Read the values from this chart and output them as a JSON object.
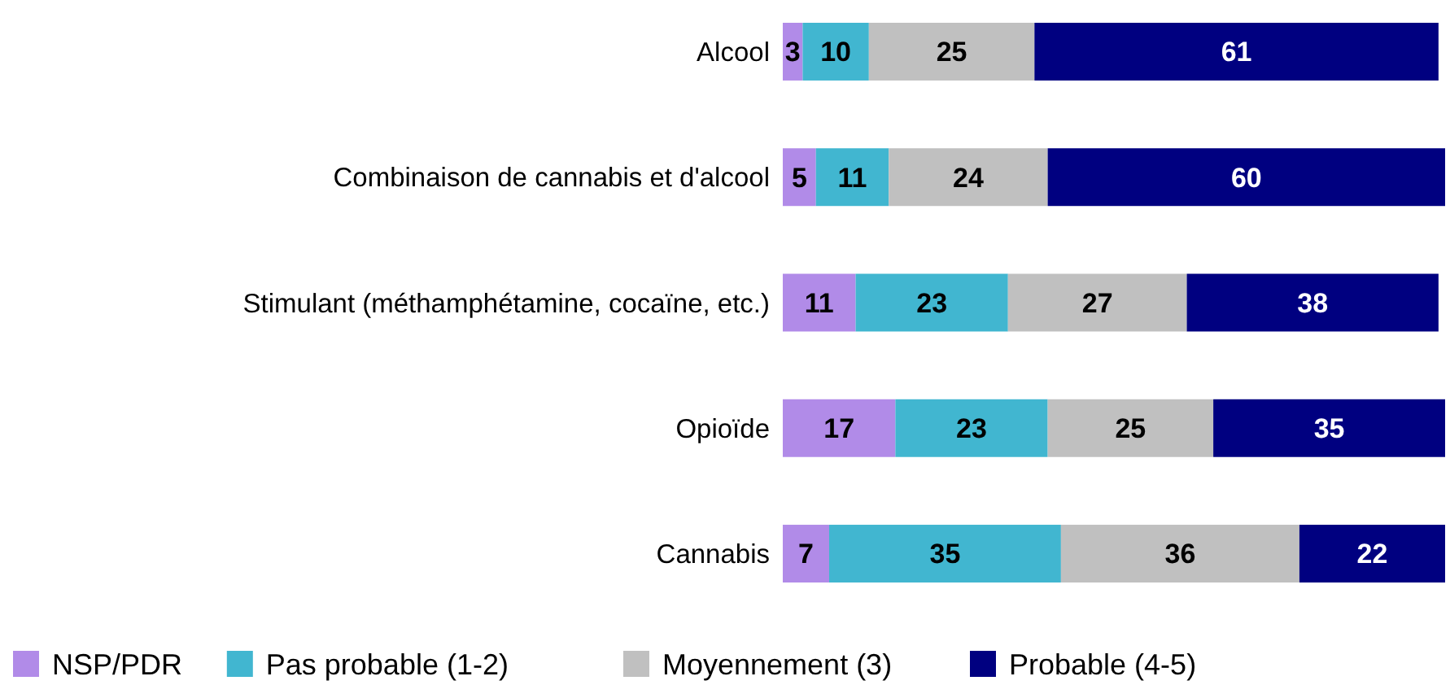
{
  "chart_data": {
    "type": "bar",
    "orientation": "horizontal",
    "stacked": true,
    "data_labels": true,
    "legend": "bottom",
    "tick_labels": "y",
    "categories": [
      "Alcool",
      "Combinaison de cannabis et d'alcool",
      "Stimulant (méthamphétamine, cocaïne, etc.)",
      "Opioïde",
      "Cannabis"
    ],
    "series": [
      {
        "name": "NSP/PDR",
        "color": "#b18be8",
        "values": [
          3,
          5,
          11,
          17,
          7
        ]
      },
      {
        "name": "Pas probable (1-2)",
        "color": "#41b6d0",
        "values": [
          10,
          11,
          23,
          23,
          35
        ]
      },
      {
        "name": "Moyennement (3)",
        "color": "#c0c0c0",
        "values": [
          25,
          24,
          27,
          25,
          36
        ]
      },
      {
        "name": "Probable (4-5)",
        "color": "#000080",
        "values": [
          61,
          60,
          38,
          35,
          22
        ]
      }
    ]
  }
}
